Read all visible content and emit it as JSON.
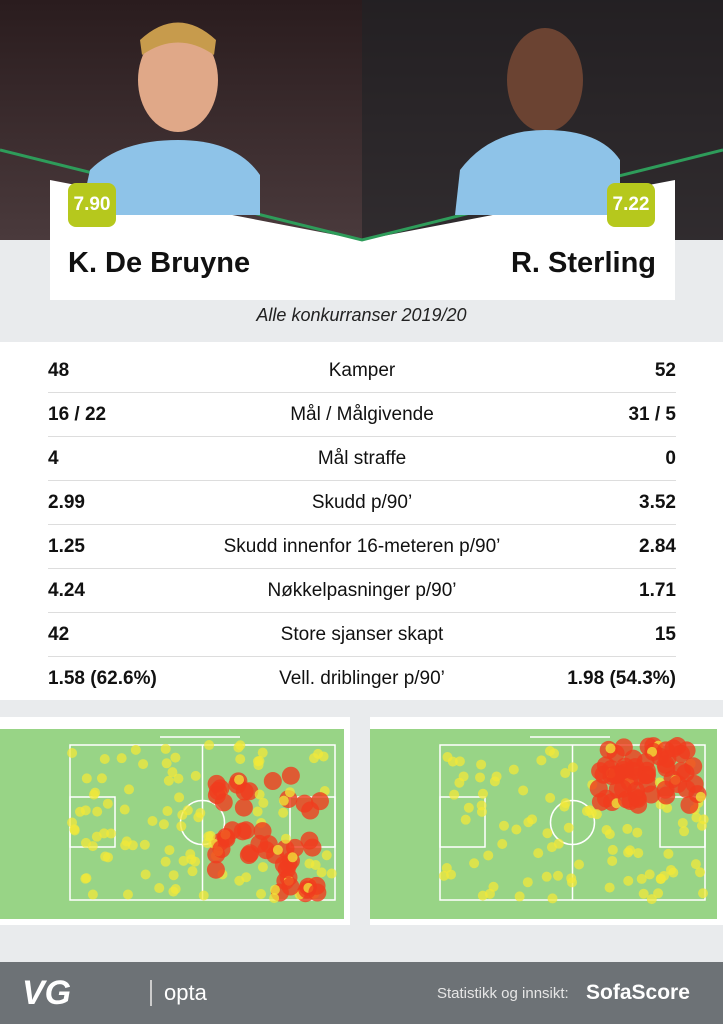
{
  "players": [
    {
      "name": "K. De Bruyne",
      "rating": "7.90"
    },
    {
      "name": "R. Sterling",
      "rating": "7.22"
    }
  ],
  "subtitle": "Alle konkurranser 2019/20",
  "stats": [
    {
      "left": "48",
      "label": "Kamper",
      "right": "52"
    },
    {
      "left": "16 / 22",
      "label": "Mål / Målgivende",
      "right": "31 / 5"
    },
    {
      "left": "4",
      "label": "Mål straffe",
      "right": "0"
    },
    {
      "left": "2.99",
      "label": "Skudd p/90’",
      "right": "3.52"
    },
    {
      "left": "1.25",
      "label": "Skudd innenfor 16-meteren p/90’",
      "right": "2.84"
    },
    {
      "left": "4.24",
      "label": "Nøkkelpasninger p/90’",
      "right": "1.71"
    },
    {
      "left": "42",
      "label": "Store sjanser skapt",
      "right": "15"
    },
    {
      "left": "1.58 (62.6%)",
      "label": "Vell. driblinger p/90’",
      "right": "1.98 (54.3%)"
    }
  ],
  "footer": {
    "brand": "VG",
    "partner": "opta",
    "credit": "Statistikk og innsikt:",
    "source": "SofaScore"
  }
}
